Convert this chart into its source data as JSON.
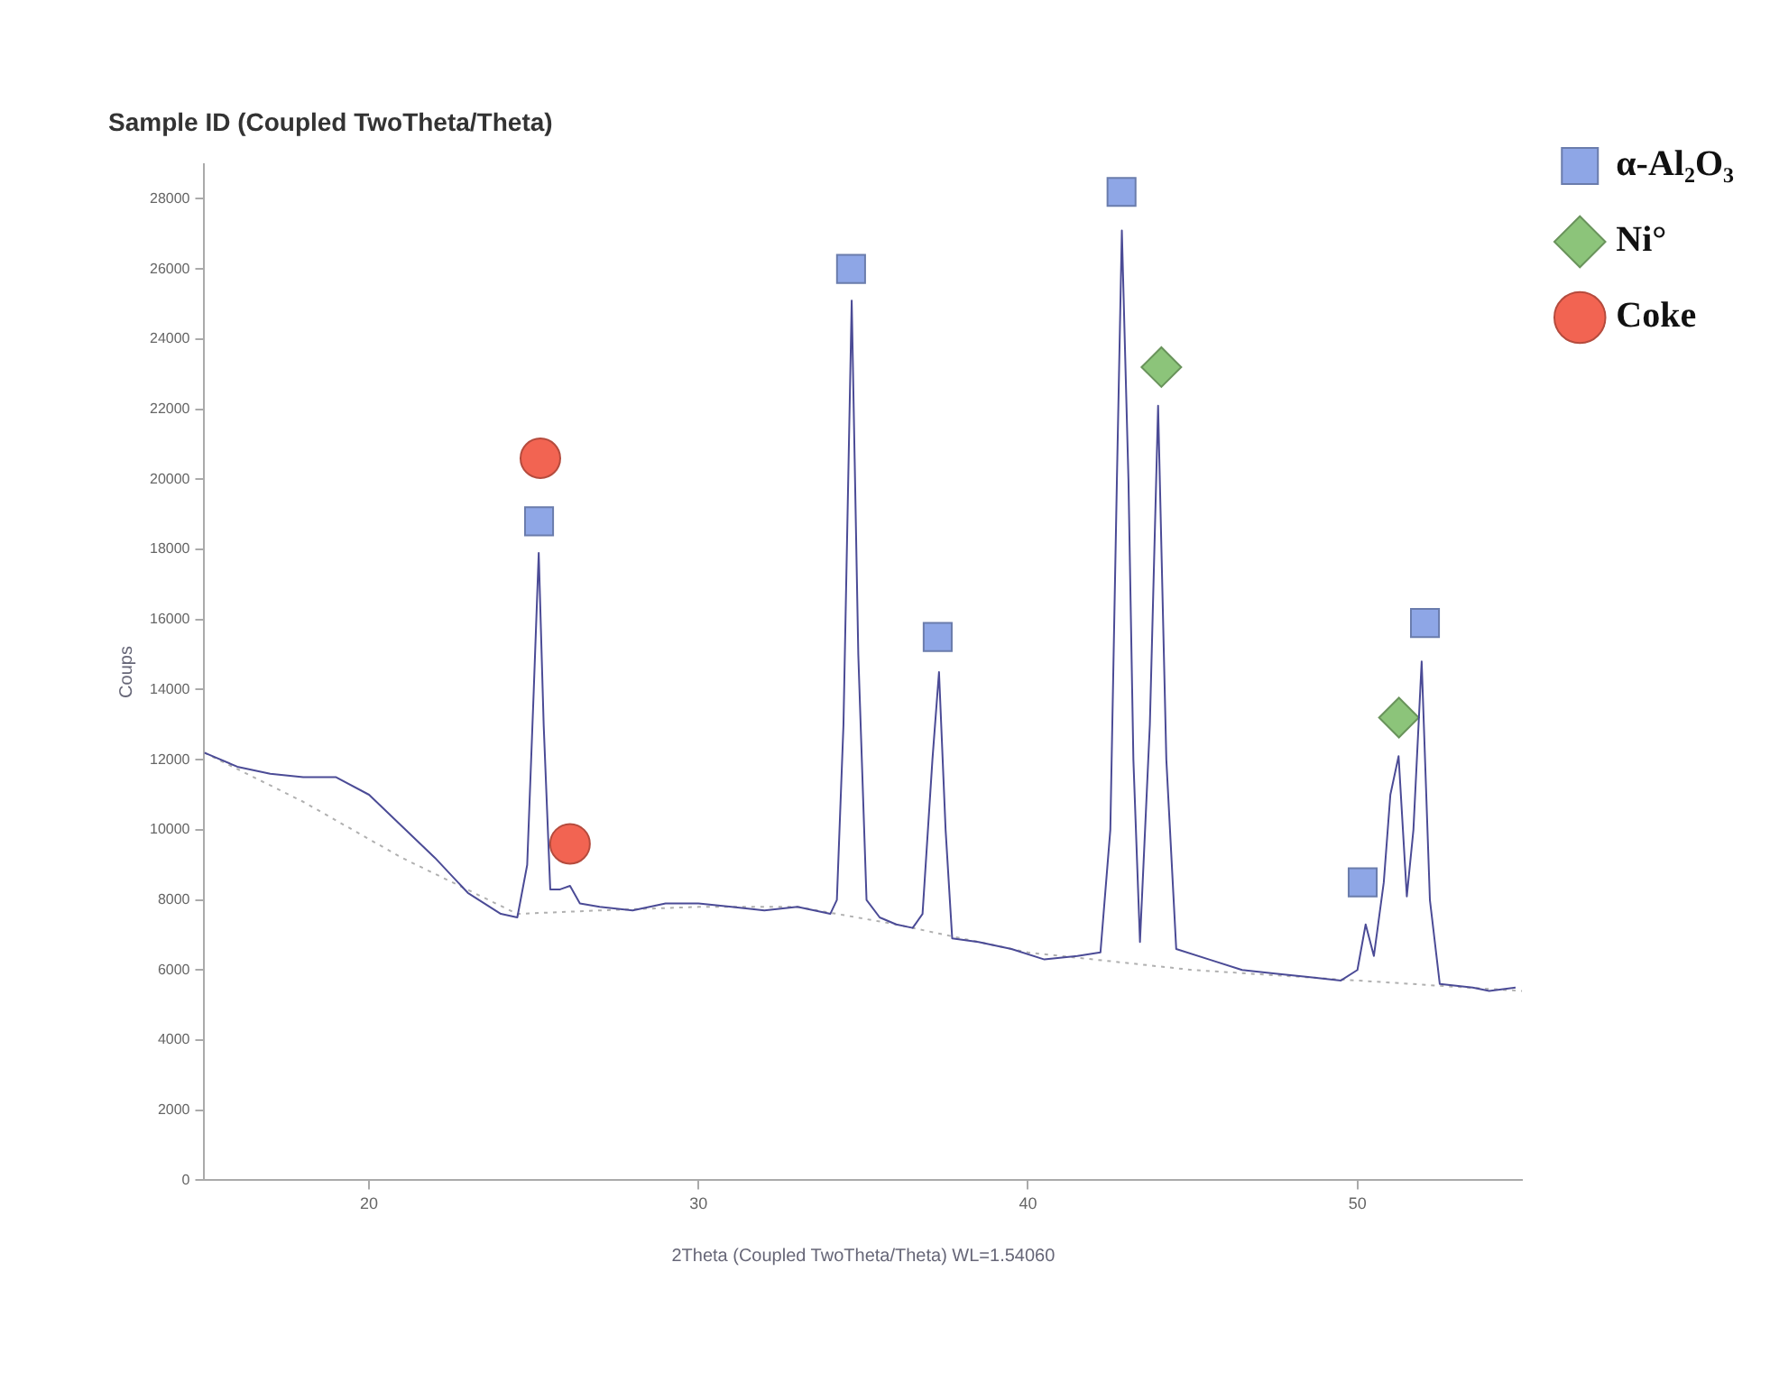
{
  "chart_data": {
    "type": "line",
    "title": "Sample ID (Coupled TwoTheta/Theta)",
    "xlabel": "2Theta (Coupled TwoTheta/Theta) WL=1.54060",
    "ylabel": "Coups",
    "xlim": [
      15,
      55
    ],
    "xticks": [
      20,
      30,
      40,
      50
    ],
    "ylim": [
      0,
      29000
    ],
    "yticks": [
      0,
      2000,
      4000,
      6000,
      8000,
      10000,
      12000,
      14000,
      16000,
      18000,
      20000,
      22000,
      24000,
      26000,
      28000
    ],
    "grid": false,
    "legend": "top right",
    "marker": "none",
    "line_style": "solid",
    "series": [
      {
        "color": "#4b4b96",
        "x": [
          15,
          16,
          17,
          18,
          19,
          20,
          21,
          22,
          23,
          24,
          24.5,
          24.8,
          25.0,
          25.15,
          25.3,
          25.5,
          25.8,
          26.1,
          26.4,
          27,
          28,
          29,
          30,
          31,
          32,
          33,
          34,
          34.2,
          34.4,
          34.65,
          34.85,
          35.1,
          35.5,
          36,
          36.5,
          36.8,
          37.1,
          37.3,
          37.5,
          37.7,
          38.5,
          39.5,
          40.5,
          41.5,
          42.2,
          42.5,
          42.7,
          42.85,
          43.05,
          43.2,
          43.4,
          43.7,
          43.95,
          44.2,
          44.5,
          45.5,
          46.5,
          47.5,
          48.5,
          49.5,
          50.0,
          50.25,
          50.5,
          50.8,
          51.0,
          51.25,
          51.5,
          51.7,
          51.95,
          52.2,
          52.5,
          53.5,
          54,
          54.8
        ],
        "values": [
          12200,
          11800,
          11600,
          11500,
          11500,
          11000,
          10100,
          9200,
          8200,
          7600,
          7500,
          9000,
          14000,
          17900,
          13000,
          8300,
          8300,
          8400,
          7900,
          7800,
          7700,
          7900,
          7900,
          7800,
          7700,
          7800,
          7600,
          8000,
          13000,
          25100,
          15000,
          8000,
          7500,
          7300,
          7200,
          7600,
          12000,
          14500,
          10000,
          6900,
          6800,
          6600,
          6300,
          6400,
          6500,
          10000,
          20000,
          27100,
          20000,
          12000,
          6800,
          13000,
          22100,
          12000,
          6600,
          6300,
          6000,
          5900,
          5800,
          5700,
          6000,
          7300,
          6400,
          8500,
          11000,
          12100,
          8100,
          10000,
          14800,
          8000,
          5600,
          5500,
          5400,
          5500
        ]
      },
      {
        "color": "#b0b0b0",
        "line_style": "dotted",
        "x": [
          15,
          18,
          21,
          24.5,
          27,
          30,
          33,
          36,
          40,
          45,
          50,
          55
        ],
        "values": [
          12200,
          10800,
          9200,
          7600,
          7700,
          7800,
          7800,
          7300,
          6500,
          6000,
          5700,
          5400
        ]
      },
      {
        "type": "scatter",
        "name": "α-Al₂O₃",
        "color": "#8ea6e6",
        "marker": "square",
        "x": [
          25.16,
          34.63,
          37.26,
          42.84,
          50.16,
          52.05
        ],
        "values": [
          18800,
          26000,
          15500,
          28200,
          8500,
          15900
        ]
      },
      {
        "type": "scatter",
        "name": "Ni°",
        "color": "#8cc47a",
        "marker": "diamond",
        "x": [
          44.05,
          51.26
        ],
        "values": [
          23200,
          13200
        ]
      },
      {
        "type": "scatter",
        "name": "Coke",
        "color": "#f26452",
        "marker": "circle",
        "x": [
          25.2,
          26.1
        ],
        "values": [
          20600,
          9600
        ]
      }
    ]
  }
}
